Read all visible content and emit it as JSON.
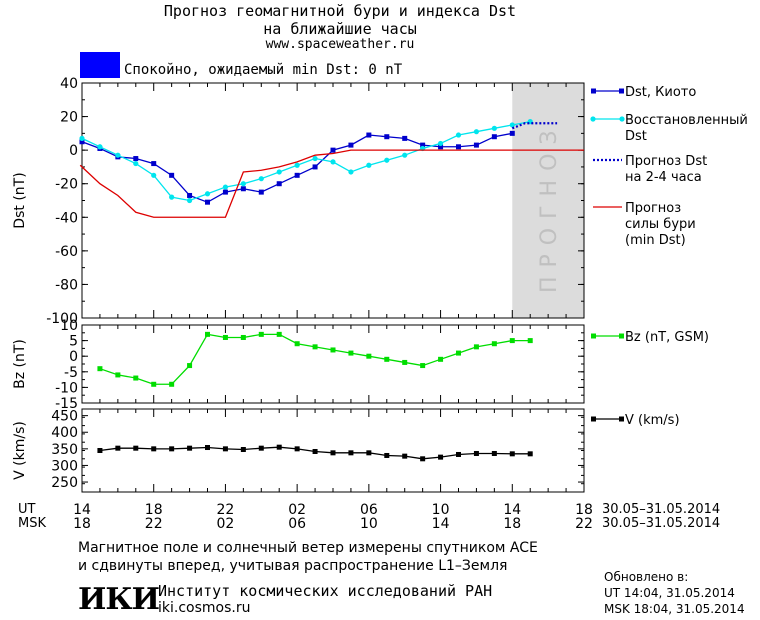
{
  "header": {
    "title_line1": "Прогноз геомагнитной бури и индекса Dst",
    "title_line2": "на ближайшие часы",
    "site": "www.spaceweather.ru",
    "status_text": "Спокойно, ожидаемый min Dst: 0 nT",
    "status_color": "#0000ff"
  },
  "colors": {
    "dst_kyoto": "#0000cc",
    "dst_restored": "#00e5ee",
    "dst_forecast": "#0000cc",
    "storm_forecast": "#dd0000",
    "bz": "#00dd00",
    "v": "#000000",
    "forecast_zone": "#dcdcdc"
  },
  "chart_data": [
    {
      "type": "line",
      "panel": "dst",
      "ylabel": "Dst (nT)",
      "ylim": [
        -100,
        40
      ],
      "yticks": [
        40,
        20,
        0,
        -20,
        -40,
        -60,
        -80,
        -100
      ],
      "x_unit": "hours UT from 30.05 14:00",
      "xlim": [
        0,
        28
      ],
      "forecast_zone_label": "ПРОГНОЗ",
      "forecast_zone_x": [
        24,
        28
      ],
      "series": [
        {
          "name": "Dst, Киото",
          "x": [
            0,
            1,
            2,
            3,
            4,
            5,
            6,
            7,
            8,
            9,
            10,
            11,
            12,
            13,
            14,
            15,
            16,
            17,
            18,
            19,
            20,
            21,
            22,
            23,
            24
          ],
          "values": [
            5,
            1,
            -4,
            -5,
            -8,
            -15,
            -27,
            -31,
            -25,
            -23,
            -25,
            -20,
            -15,
            -10,
            0,
            3,
            9,
            8,
            7,
            3,
            2,
            2,
            3,
            8,
            10
          ]
        },
        {
          "name": "Восстановленный Dst",
          "x": [
            0,
            1,
            2,
            3,
            4,
            5,
            6,
            7,
            8,
            9,
            10,
            11,
            12,
            13,
            14,
            15,
            16,
            17,
            18,
            19,
            20,
            21,
            22,
            23,
            24,
            25
          ],
          "values": [
            7,
            2,
            -3,
            -8,
            -15,
            -28,
            -30,
            -26,
            -22,
            -20,
            -17,
            -13,
            -9,
            -5,
            -7,
            -13,
            -9,
            -6,
            -3,
            1,
            4,
            9,
            11,
            13,
            15,
            17
          ]
        },
        {
          "name": "Прогноз Dst на 2-4 часа",
          "x": [
            24,
            24.7,
            25.5,
            26.5
          ],
          "values": [
            13,
            16,
            16,
            16
          ]
        },
        {
          "name": "Прогноз силы бури (min Dst)",
          "x": [
            -0.1,
            1,
            2,
            3,
            4,
            6,
            8,
            9,
            10,
            11,
            12,
            13,
            14,
            15,
            16,
            17,
            18,
            19,
            20,
            21,
            22,
            23,
            24,
            25,
            28
          ],
          "values": [
            -9,
            -20,
            -27,
            -37,
            -40,
            -40,
            -40,
            -13,
            -12,
            -10,
            -7,
            -3,
            -2,
            0,
            0,
            0,
            0,
            0,
            0,
            0,
            0,
            0,
            0,
            0,
            0
          ]
        }
      ]
    },
    {
      "type": "line",
      "panel": "bz",
      "ylabel": "Bz (nT)",
      "ylim": [
        -15,
        10
      ],
      "yticks": [
        10,
        5,
        0,
        -5,
        -10,
        -15
      ],
      "series": [
        {
          "name": "Bz (nT, GSM)",
          "x": [
            1,
            2,
            3,
            4,
            5,
            6,
            7,
            8,
            9,
            10,
            11,
            12,
            13,
            14,
            15,
            16,
            17,
            18,
            19,
            20,
            21,
            22,
            23,
            24,
            25
          ],
          "values": [
            -4,
            -6,
            -7,
            -9,
            -9,
            -3,
            7,
            6,
            6,
            7,
            7,
            4,
            3,
            2,
            1,
            0,
            -1,
            -2,
            -3,
            -1,
            1,
            3,
            4,
            5,
            5
          ]
        }
      ]
    },
    {
      "type": "line",
      "panel": "v",
      "ylabel": "V (km/s)",
      "ylim": [
        220,
        470
      ],
      "yticks": [
        450,
        400,
        350,
        300,
        250
      ],
      "series": [
        {
          "name": "V (km/s)",
          "x": [
            1,
            2,
            3,
            4,
            5,
            6,
            7,
            8,
            9,
            10,
            11,
            12,
            13,
            14,
            15,
            16,
            17,
            18,
            19,
            20,
            21,
            22,
            23,
            24,
            25
          ],
          "values": [
            345,
            352,
            352,
            350,
            350,
            352,
            354,
            350,
            348,
            352,
            355,
            350,
            342,
            338,
            338,
            338,
            330,
            328,
            320,
            325,
            333,
            336,
            336,
            335,
            335
          ]
        }
      ]
    }
  ],
  "axis": {
    "ut_label": "UT",
    "msk_label": "MSK",
    "ut_ticks": [
      "14",
      "18",
      "22",
      "02",
      "06",
      "10",
      "14",
      "18"
    ],
    "msk_ticks": [
      "18",
      "22",
      "02",
      "06",
      "10",
      "14",
      "18",
      "22"
    ],
    "date_range_ut": "30.05–31.05.2014",
    "date_range_msk": "30.05–31.05.2014"
  },
  "footer": {
    "note_line1": "Магнитное поле и солнечный ветер измерены спутником ACE",
    "note_line2": "и сдвинуты вперед, учитывая распространение L1–Земля",
    "logo_text": "ИКИ",
    "institute": "Институт космических исследований РАН",
    "institute_site": "iki.cosmos.ru",
    "updated_label": "Обновлено в:",
    "updated_ut": "UT   14:04, 31.05.2014",
    "updated_msk": "MSK 18:04, 31.05.2014"
  }
}
